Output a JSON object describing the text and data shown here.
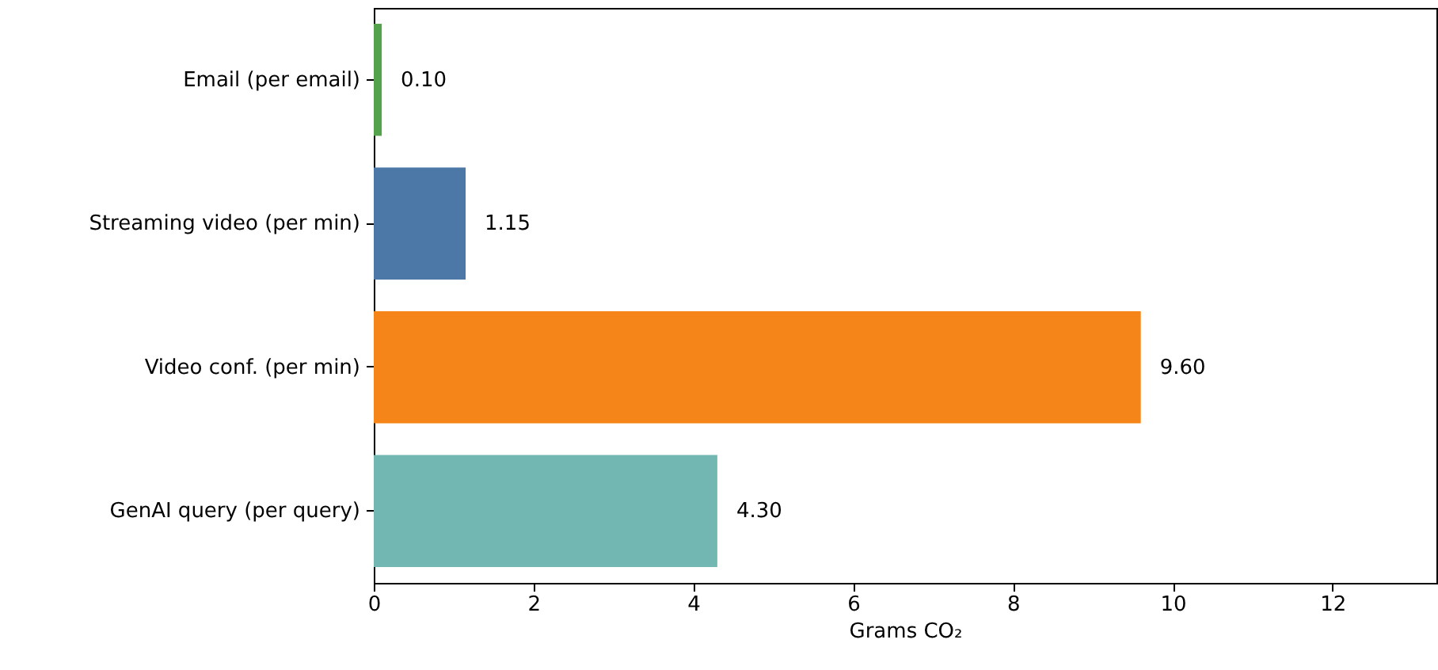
{
  "chart_data": {
    "type": "bar",
    "orientation": "horizontal",
    "categories": [
      "Email (per email)",
      "Streaming video (per min)",
      "Video conf. (per min)",
      "GenAI query (per query)"
    ],
    "values": [
      0.1,
      1.15,
      9.6,
      4.3
    ],
    "colors": [
      "#54a24b",
      "#4c78a8",
      "#f58518",
      "#72b7b2"
    ],
    "value_labels": [
      "0.10",
      "1.15",
      "9.60",
      "4.30"
    ],
    "xlabel": "Grams CO₂",
    "xlim": [
      0,
      13.3
    ],
    "xticks": [
      0,
      2,
      4,
      6,
      8,
      10,
      12
    ],
    "grid": false
  }
}
